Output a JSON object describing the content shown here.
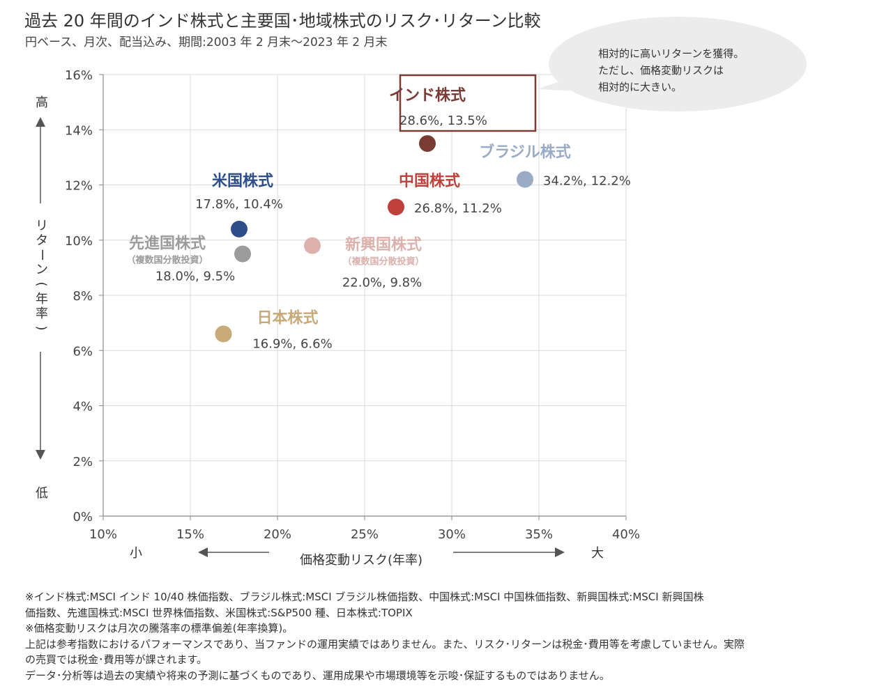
{
  "title": "過去 20 年間のインド株式と主要国･地域株式のリスク･リターン比較",
  "subtitle": "円ベース、月次、配当込み、期間:2003 年 2 月末～2023 年 2 月末",
  "chart_data": {
    "type": "scatter",
    "xlabel": "価格変動リスク(年率)",
    "ylabel": "リターン(年率)",
    "xlim": [
      10,
      40
    ],
    "ylim": [
      0,
      16
    ],
    "xticks": [
      "10%",
      "15%",
      "20%",
      "25%",
      "30%",
      "35%",
      "40%"
    ],
    "yticks": [
      "0%",
      "2%",
      "4%",
      "6%",
      "8%",
      "10%",
      "12%",
      "14%",
      "16%"
    ],
    "grid": true,
    "y_axis_high": "高",
    "y_axis_low": "低",
    "x_axis_small": "小",
    "x_axis_large": "大",
    "points": [
      {
        "name": "インド株式",
        "sub": "",
        "value_label": "28.6%, 13.5%",
        "x": 28.6,
        "y": 13.5,
        "color": "#7a3b35"
      },
      {
        "name": "ブラジル株式",
        "sub": "",
        "value_label": "34.2%, 12.2%",
        "x": 34.2,
        "y": 12.2,
        "color": "#9aabc6"
      },
      {
        "name": "中国株式",
        "sub": "",
        "value_label": "26.8%, 11.2%",
        "x": 26.8,
        "y": 11.2,
        "color": "#c0403c"
      },
      {
        "name": "米国株式",
        "sub": "",
        "value_label": "17.8%, 10.4%",
        "x": 17.8,
        "y": 10.4,
        "color": "#2e4e8a"
      },
      {
        "name": "先進国株式",
        "sub": "（複数国分散投資）",
        "value_label": "18.0%, 9.5%",
        "x": 18.0,
        "y": 9.5,
        "color": "#9b9b9b"
      },
      {
        "name": "新興国株式",
        "sub": "（複数国分散投資）",
        "value_label": "22.0%, 9.8%",
        "x": 22.0,
        "y": 9.8,
        "color": "#dcb1ab"
      },
      {
        "name": "日本株式",
        "sub": "",
        "value_label": "16.9%, 6.6%",
        "x": 16.9,
        "y": 6.6,
        "color": "#c8a97a"
      }
    ],
    "callout": [
      "相対的に高いリターンを獲得。",
      "ただし、価格変動リスクは",
      "相対的に大きい。"
    ]
  },
  "notes": [
    "※インド株式:MSCI インド 10/40 株価指数、ブラジル株式:MSCI ブラジル株価指数、中国株式:MSCI 中国株価指数、新興国株式:MSCI 新興国株",
    "価指数、先進国株式:MSCI 世界株価指数、米国株式:S&P500 種、日本株式:TOPIX",
    "※価格変動リスクは月次の騰落率の標準偏差(年率換算)。",
    "上記は参考指数におけるパフォーマンスであり、当ファンドの運用実績ではありません。また、リスク･リターンは税金･費用等を考慮していません。実際",
    "の売買では税金･費用等が課されます。",
    "データ･分析等は過去の実績や将来の予測に基づくものであり、運用成果や市場環境等を示唆･保証するものではありません。"
  ]
}
